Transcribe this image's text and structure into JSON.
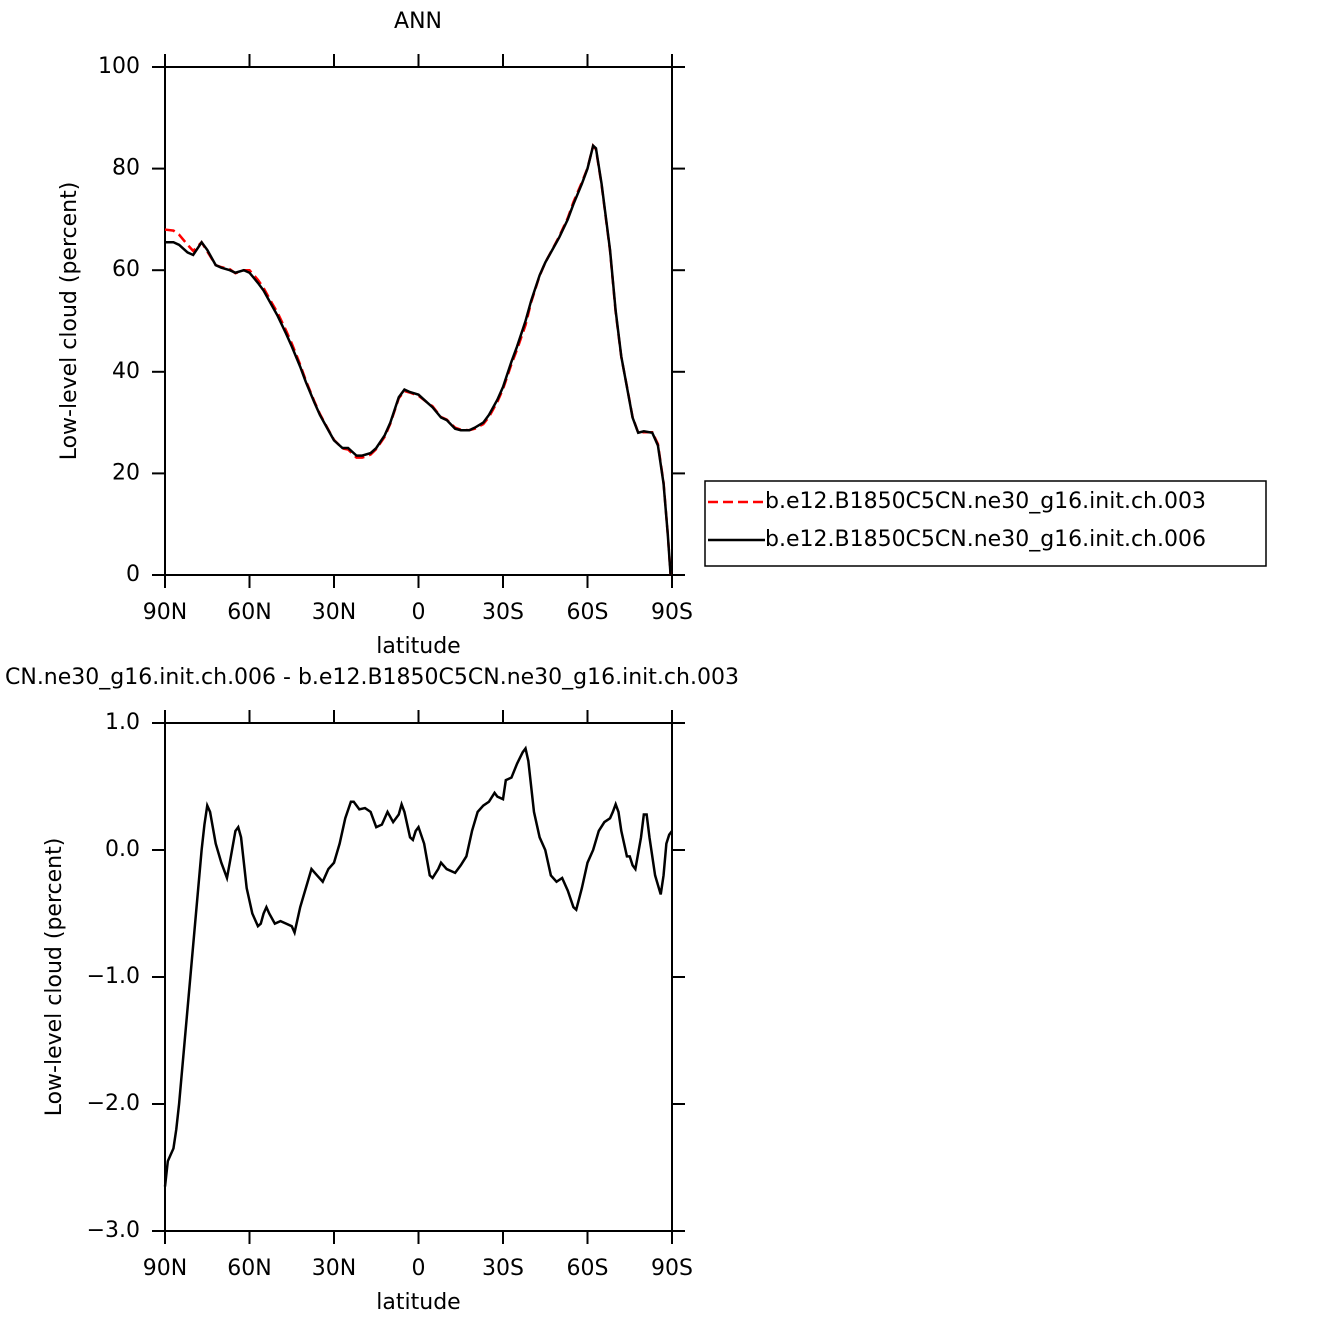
{
  "chart_data": [
    {
      "type": "line",
      "title": "ANN",
      "xlabel": "latitude",
      "ylabel": "Low-level cloud (percent)",
      "x": [
        90,
        87,
        85,
        82,
        80,
        77,
        75,
        72,
        70,
        67,
        65,
        62,
        60,
        57,
        55,
        52,
        50,
        47,
        45,
        42,
        40,
        37,
        35,
        32,
        30,
        27,
        25,
        22,
        20,
        17,
        15,
        12,
        10,
        7,
        5,
        3,
        0,
        -3,
        -5,
        -8,
        -10,
        -13,
        -15,
        -18,
        -20,
        -23,
        -25,
        -28,
        -30,
        -33,
        -35,
        -38,
        -40,
        -43,
        -45,
        -48,
        -50,
        -53,
        -55,
        -58,
        -60,
        -62,
        -63,
        -65,
        -68,
        -70,
        -72,
        -74,
        -76,
        -78,
        -80,
        -83,
        -85,
        -87,
        -88.5,
        -89.5
      ],
      "series": [
        {
          "name": "b.e12.B1850C5CN.ne30_g16.init.ch.003",
          "color": "#ff0000",
          "dash": true,
          "values": [
            68,
            67.8,
            67,
            65,
            63.8,
            65.5,
            63.7,
            61,
            60.6,
            60.2,
            59.4,
            60,
            60,
            58.1,
            56.5,
            53.5,
            51.6,
            48.1,
            45.6,
            41.4,
            38.3,
            34.2,
            31.7,
            28.6,
            26.6,
            24.9,
            24.7,
            23.1,
            23.1,
            23.7,
            24.8,
            27.2,
            29.8,
            34.8,
            36.2,
            35.9,
            35.3,
            34,
            33.2,
            31.1,
            30.6,
            29,
            28.6,
            28.5,
            28.8,
            29.7,
            31.1,
            34.1,
            36.6,
            41.5,
            44.4,
            49.2,
            53.7,
            58.9,
            61.5,
            64.6,
            66.7,
            70.3,
            73.4,
            77.3,
            80.1,
            84.5,
            83.8,
            76.8,
            63.8,
            51.7,
            42.9,
            37.1,
            31.1,
            28,
            28.1,
            28.1,
            25.8,
            18.2,
            8,
            0
          ]
        },
        {
          "name": "b.e12.B1850C5CN.ne30_g16.init.ch.006",
          "color": "#000000",
          "dash": false,
          "values": [
            65.5,
            65.5,
            65,
            63.5,
            63,
            65.5,
            64,
            61,
            60.5,
            60,
            59.5,
            60,
            59.5,
            57.5,
            56,
            53,
            51,
            47.5,
            45,
            41,
            38,
            34,
            31.5,
            28.5,
            26.5,
            25,
            25,
            23.5,
            23.5,
            24,
            25,
            27.5,
            30,
            35,
            36.5,
            36,
            35.5,
            34,
            33,
            31,
            30.5,
            28.8,
            28.5,
            28.5,
            29,
            30,
            31.5,
            34.5,
            37,
            42,
            45,
            50,
            54,
            59,
            61.5,
            64.5,
            66.5,
            70,
            73,
            77,
            80,
            84.5,
            84,
            77,
            64,
            52,
            43,
            37,
            31,
            28,
            28.3,
            28,
            25.5,
            18,
            8,
            0
          ]
        }
      ],
      "xlim": [
        90,
        -90
      ],
      "xticks": [
        {
          "value": 90,
          "label": "90N"
        },
        {
          "value": 60,
          "label": "60N"
        },
        {
          "value": 30,
          "label": "30N"
        },
        0,
        {
          "value": -30,
          "label": "30S"
        },
        {
          "value": -60,
          "label": "60S"
        },
        {
          "value": -90,
          "label": "90S"
        }
      ],
      "ylim": [
        0,
        100
      ],
      "yticks": [
        0,
        20,
        40,
        60,
        80,
        100
      ],
      "legend": "right"
    },
    {
      "type": "line",
      "title": "CN.ne30_g16.init.ch.006 - b.e12.B1850C5CN.ne30_g16.init.ch.003",
      "xlabel": "latitude",
      "ylabel": "Low-level cloud (percent)",
      "x": [
        90,
        89,
        88,
        87,
        86,
        85,
        83,
        81,
        79,
        77,
        76,
        75,
        74,
        72,
        70,
        68,
        67,
        65,
        64,
        63,
        61,
        59,
        57,
        56,
        55,
        54,
        53,
        51,
        49,
        47,
        45,
        44,
        42,
        40,
        38,
        36,
        34,
        32,
        30,
        28,
        26,
        24,
        23,
        21,
        19,
        17,
        15,
        13,
        11,
        9,
        7,
        6,
        5,
        3,
        2,
        1,
        0,
        -2,
        -4,
        -5,
        -7,
        -8,
        -10,
        -13,
        -15,
        -17,
        -19,
        -21,
        -23,
        -25,
        -27,
        -28,
        -30,
        -31,
        -33,
        -35,
        -37,
        -38,
        -39,
        -41,
        -43,
        -45,
        -47,
        -49,
        -51,
        -53,
        -55,
        -56,
        -58,
        -60,
        -62,
        -64,
        -66,
        -68,
        -69,
        -70,
        -71,
        -72,
        -74,
        -75,
        -76,
        -77,
        -79,
        -80,
        -81,
        -82,
        -84,
        -86,
        -87,
        -88,
        -89,
        -90
      ],
      "series": [
        {
          "color": "#000000",
          "dash": false,
          "values": [
            -2.65,
            -2.45,
            -2.4,
            -2.35,
            -2.2,
            -2.0,
            -1.5,
            -1.0,
            -0.5,
            0.0,
            0.2,
            0.35,
            0.3,
            0.05,
            -0.1,
            -0.22,
            -0.1,
            0.15,
            0.18,
            0.1,
            -0.3,
            -0.5,
            -0.6,
            -0.58,
            -0.5,
            -0.45,
            -0.5,
            -0.58,
            -0.56,
            -0.58,
            -0.6,
            -0.65,
            -0.45,
            -0.3,
            -0.15,
            -0.2,
            -0.25,
            -0.15,
            -0.1,
            0.05,
            0.25,
            0.38,
            0.38,
            0.32,
            0.33,
            0.3,
            0.18,
            0.2,
            0.3,
            0.22,
            0.28,
            0.36,
            0.3,
            0.1,
            0.08,
            0.15,
            0.18,
            0.05,
            -0.2,
            -0.22,
            -0.15,
            -0.1,
            -0.15,
            -0.18,
            -0.12,
            -0.05,
            0.15,
            0.3,
            0.35,
            0.38,
            0.45,
            0.42,
            0.4,
            0.55,
            0.57,
            0.68,
            0.77,
            0.8,
            0.7,
            0.3,
            0.1,
            0.0,
            -0.2,
            -0.25,
            -0.22,
            -0.32,
            -0.45,
            -0.47,
            -0.3,
            -0.1,
            0.0,
            0.15,
            0.22,
            0.25,
            0.3,
            0.36,
            0.3,
            0.15,
            -0.05,
            -0.05,
            -0.12,
            -0.15,
            0.1,
            0.28,
            0.28,
            0.1,
            -0.2,
            -0.35,
            -0.2,
            0.05,
            0.12,
            0.15
          ]
        }
      ],
      "xlim": [
        90,
        -90
      ],
      "xticks": [
        {
          "value": 90,
          "label": "90N"
        },
        {
          "value": 60,
          "label": "60N"
        },
        {
          "value": 30,
          "label": "30N"
        },
        0,
        {
          "value": -30,
          "label": "30S"
        },
        {
          "value": -60,
          "label": "60S"
        },
        {
          "value": -90,
          "label": "90S"
        }
      ],
      "ylim": [
        -3,
        1
      ],
      "yticks": [
        {
          "value": -3,
          "label": "−3.0"
        },
        {
          "value": -2,
          "label": "−2.0"
        },
        {
          "value": -1,
          "label": "−1.0"
        },
        {
          "value": 0,
          "label": "0.0"
        },
        {
          "value": 1,
          "label": "1.0"
        }
      ]
    }
  ]
}
